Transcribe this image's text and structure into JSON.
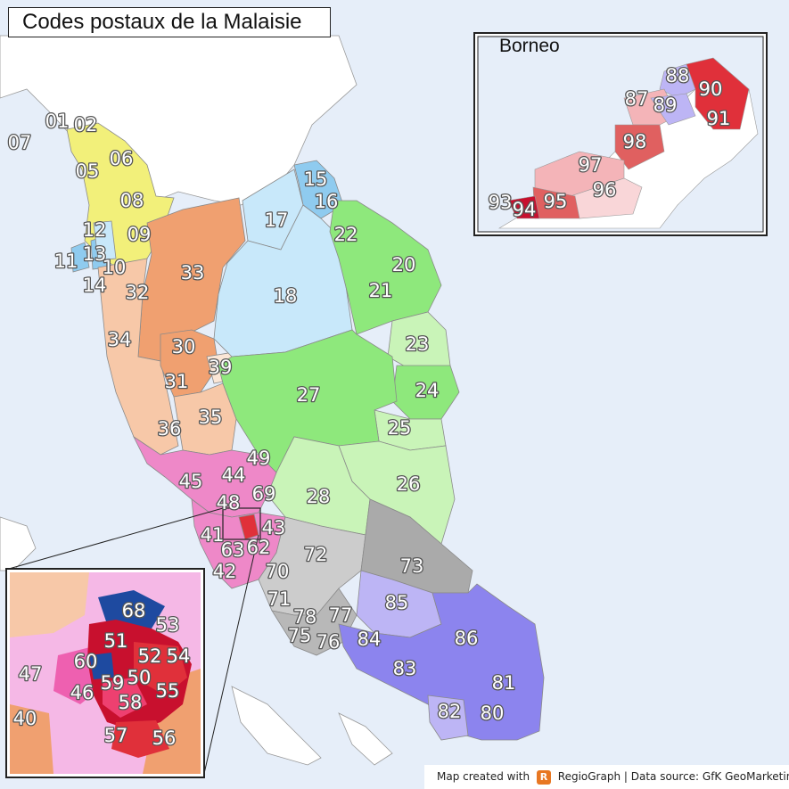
{
  "title": "Codes postaux de la Malaisie",
  "inset_borneo_title": "Borneo",
  "credit": {
    "prefix": "Map created with",
    "logo_letter": "R",
    "text": "RegioGraph | Data source: GfK GeoMarketing"
  },
  "colors": {
    "sea": "#e6eef9",
    "land": "#ffffff",
    "yellow": "#f2f07a",
    "orange": "#f0a070",
    "peach": "#f7c8a8",
    "light_blue": "#c8e8fa",
    "blue": "#8fcbef",
    "green": "#8ee87c",
    "light_green": "#c9f4b8",
    "pink": "#ee88c8",
    "grey": "#cccccc",
    "dark_grey": "#aaaaaa",
    "violet": "#8c84ee",
    "light_violet": "#bdb5f5",
    "red": "#e0303a",
    "salmon": "#f4b4b8",
    "dark_blue": "#1e4aa0"
  },
  "postal_codes": {
    "c01": "01",
    "c02": "02",
    "c05": "05",
    "c06": "06",
    "c07": "07",
    "c08": "08",
    "c09": "09",
    "c10": "10",
    "c11": "11",
    "c12": "12",
    "c13": "13",
    "c14": "14",
    "c15": "15",
    "c16": "16",
    "c17": "17",
    "c18": "18",
    "c20": "20",
    "c21": "21",
    "c22": "22",
    "c23": "23",
    "c24": "24",
    "c25": "25",
    "c26": "26",
    "c27": "27",
    "c28": "28",
    "c30": "30",
    "c31": "31",
    "c32": "32",
    "c33": "33",
    "c34": "34",
    "c35": "35",
    "c36": "36",
    "c39": "39",
    "c40": "40",
    "c41": "41",
    "c42": "42",
    "c43": "43",
    "c44": "44",
    "c45": "45",
    "c46": "46",
    "c47": "47",
    "c48": "48",
    "c49": "49",
    "c50": "50",
    "c51": "51",
    "c52": "52",
    "c53": "53",
    "c54": "54",
    "c55": "55",
    "c56": "56",
    "c57": "57",
    "c58": "58",
    "c59": "59",
    "c60": "60",
    "c62": "62",
    "c63": "63",
    "c68": "68",
    "c69": "69",
    "c70": "70",
    "c71": "71",
    "c72": "72",
    "c73": "73",
    "c75": "75",
    "c76": "76",
    "c77": "77",
    "c78": "78",
    "c80": "80",
    "c81": "81",
    "c82": "82",
    "c83": "83",
    "c84": "84",
    "c85": "85",
    "c86": "86",
    "c87": "87",
    "c88": "88",
    "c89": "89",
    "c90": "90",
    "c91": "91",
    "c93": "93",
    "c94": "94",
    "c95": "95",
    "c96": "96",
    "c97": "97",
    "c98": "98"
  }
}
